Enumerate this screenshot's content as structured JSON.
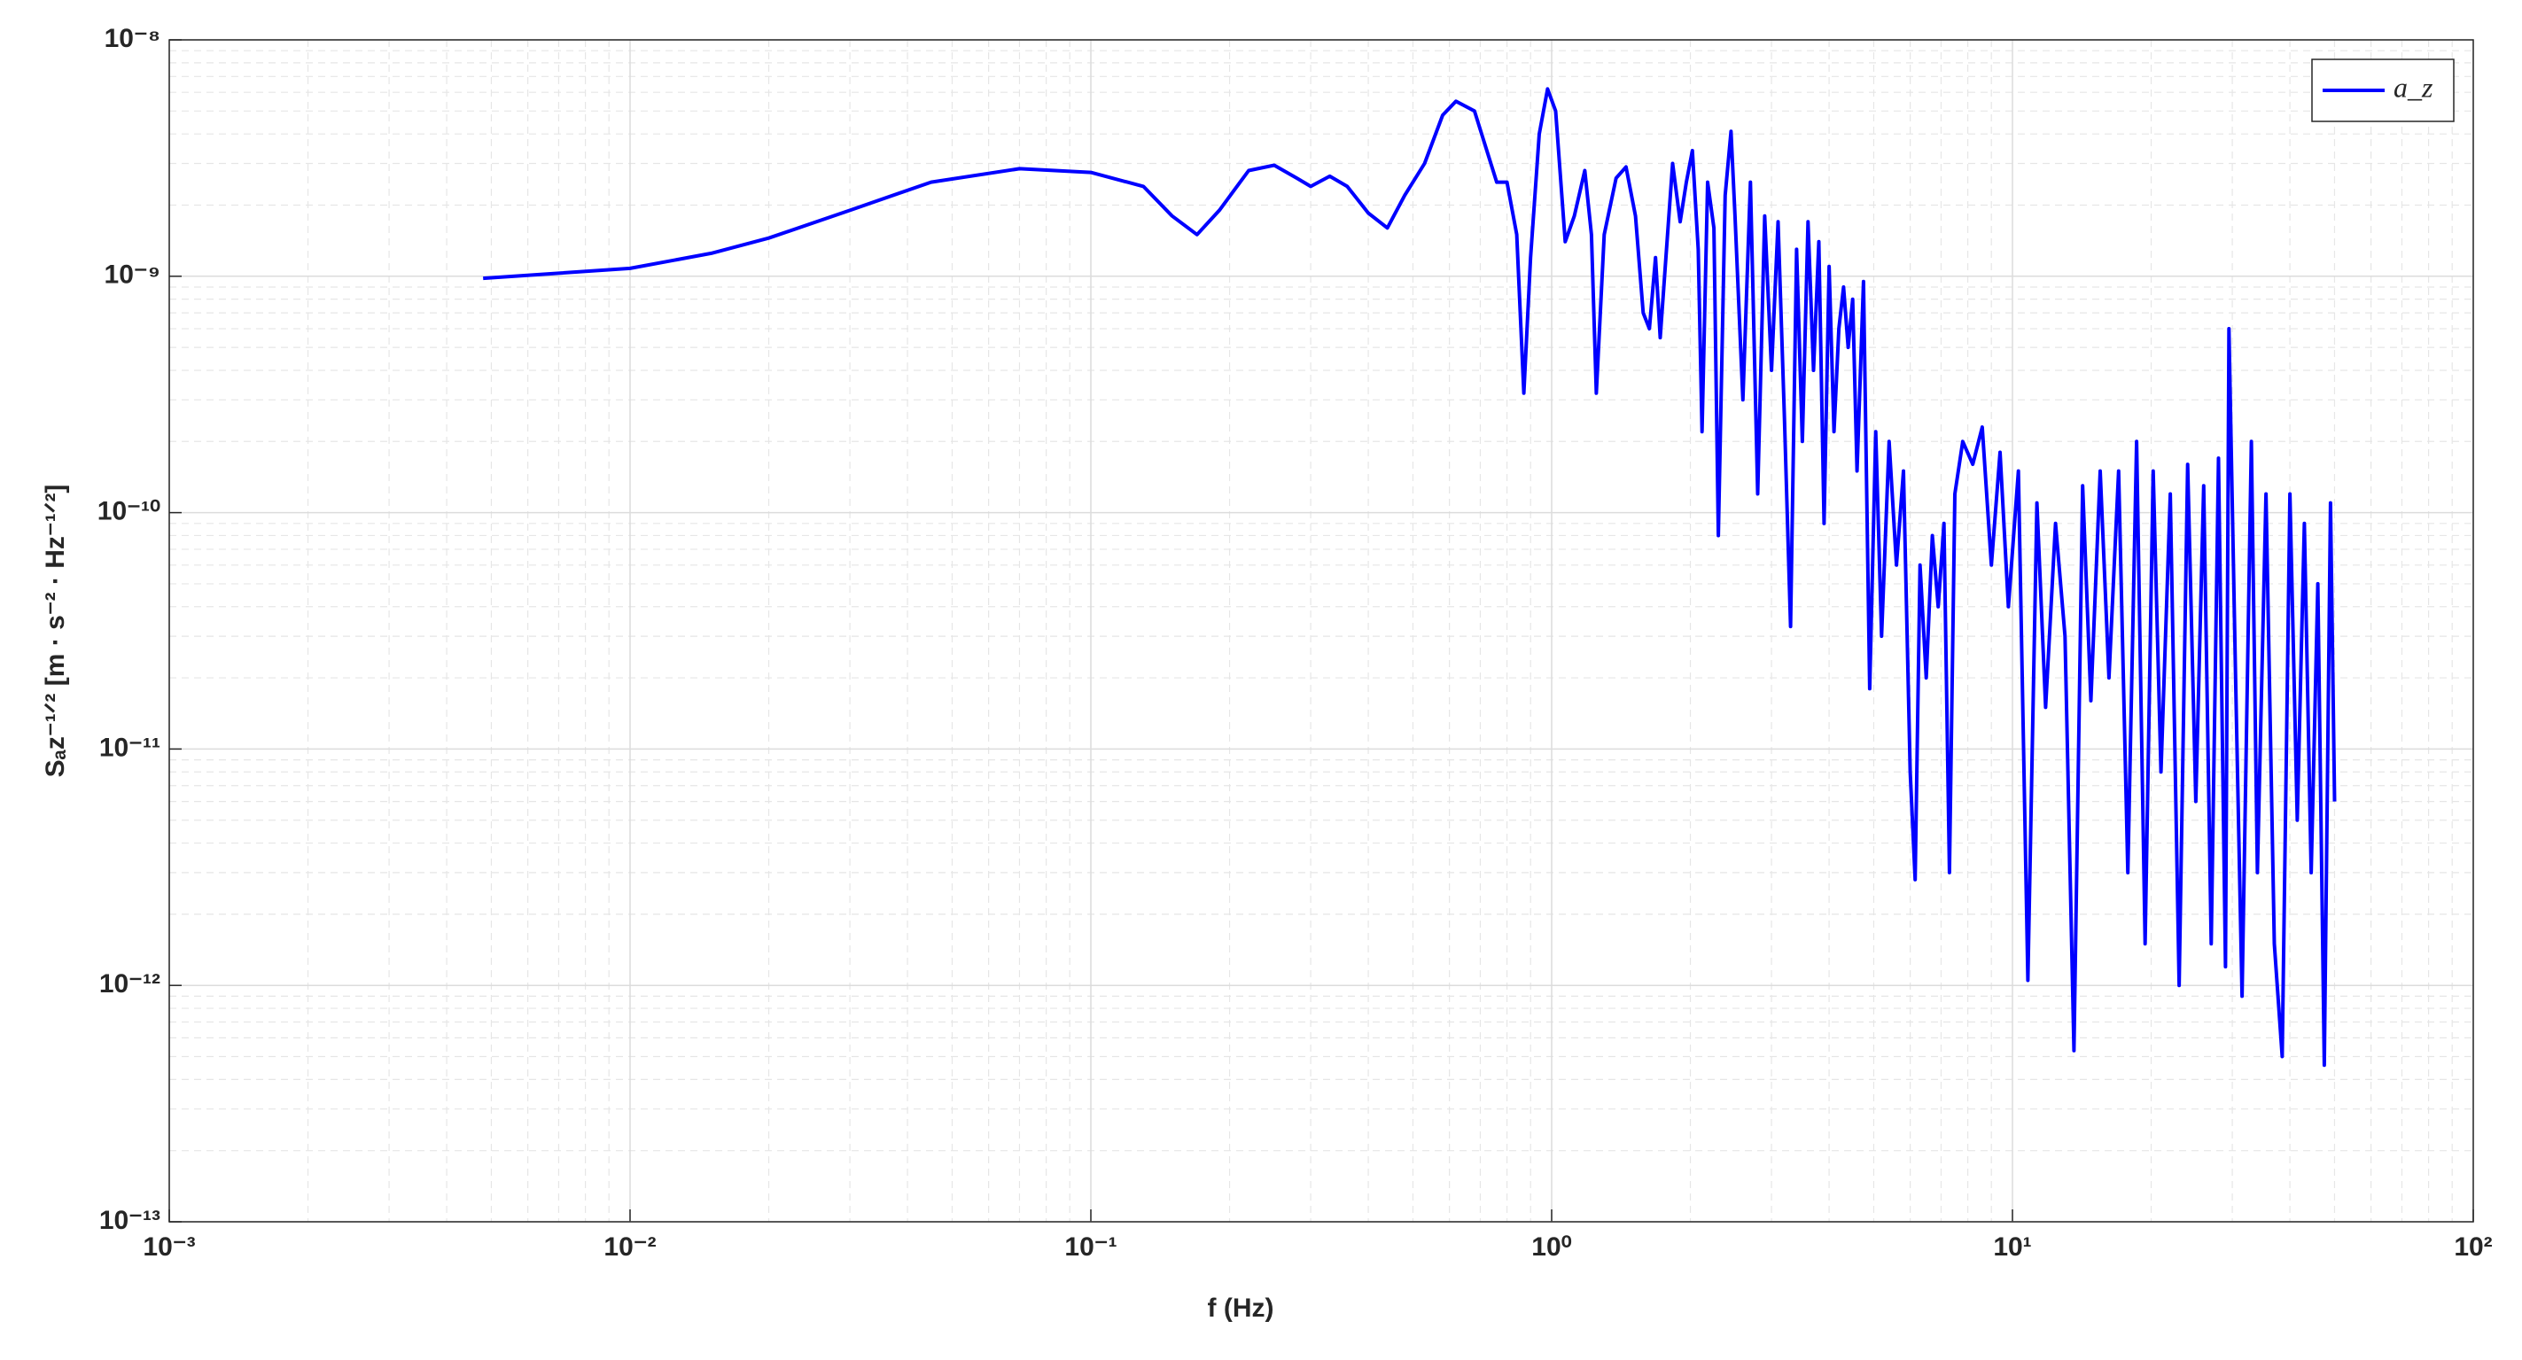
{
  "chart_data": {
    "type": "line",
    "xlabel": "f (Hz)",
    "ylabel": "Sₐz⁻¹ᐟ² [m · s⁻² · Hz⁻¹ᐟ²]",
    "log_x": true,
    "log_y": true,
    "grid": true,
    "minor_grid": true,
    "legend": "upper right",
    "xlim": [
      0.001,
      100
    ],
    "xticks": [
      {
        "value": 0.001,
        "label": "10⁻³"
      },
      {
        "value": 0.01,
        "label": "10⁻²"
      },
      {
        "value": 0.1,
        "label": "10⁻¹"
      },
      {
        "value": 1,
        "label": "10⁰"
      },
      {
        "value": 10,
        "label": "10¹"
      },
      {
        "value": 100,
        "label": "10²"
      }
    ],
    "ylim": [
      1e-13,
      1e-08
    ],
    "yticks": [
      {
        "value": 1e-13,
        "label": "10⁻¹³"
      },
      {
        "value": 1e-12,
        "label": "10⁻¹²"
      },
      {
        "value": 1e-11,
        "label": "10⁻¹¹"
      },
      {
        "value": 1e-10,
        "label": "10⁻¹⁰"
      },
      {
        "value": 1e-09,
        "label": "10⁻⁹"
      },
      {
        "value": 1e-08,
        "label": "10⁻⁸"
      }
    ],
    "x": [
      0.0048,
      0.0065,
      0.01,
      0.015,
      0.02,
      0.03,
      0.045,
      0.07,
      0.1,
      0.13,
      0.15,
      0.17,
      0.19,
      0.22,
      0.25,
      0.28,
      0.3,
      0.33,
      0.36,
      0.4,
      0.44,
      0.48,
      0.53,
      0.58,
      0.62,
      0.68,
      0.72,
      0.76,
      0.8,
      0.84,
      0.87,
      0.9,
      0.94,
      0.98,
      1.02,
      1.07,
      1.12,
      1.18,
      1.22,
      1.25,
      1.3,
      1.38,
      1.45,
      1.52,
      1.58,
      1.63,
      1.68,
      1.72,
      1.78,
      1.83,
      1.9,
      1.96,
      2.02,
      2.08,
      2.12,
      2.18,
      2.25,
      2.3,
      2.38,
      2.45,
      2.5,
      2.6,
      2.7,
      2.8,
      2.9,
      3.0,
      3.1,
      3.2,
      3.3,
      3.4,
      3.5,
      3.6,
      3.7,
      3.8,
      3.9,
      4.0,
      4.1,
      4.2,
      4.3,
      4.4,
      4.5,
      4.6,
      4.75,
      4.9,
      5.05,
      5.2,
      5.4,
      5.6,
      5.8,
      6.0,
      6.15,
      6.3,
      6.5,
      6.7,
      6.9,
      7.1,
      7.3,
      7.5,
      7.8,
      8.2,
      8.6,
      9.0,
      9.4,
      9.8,
      10.3,
      10.8,
      11.3,
      11.8,
      12.4,
      13,
      13.6,
      14.2,
      14.8,
      15.5,
      16.2,
      17,
      17.8,
      18.6,
      19.4,
      20.2,
      21,
      22,
      23,
      24,
      25,
      26,
      27,
      28,
      29,
      29.5,
      30.5,
      31.5,
      33,
      34,
      35.5,
      37,
      38.5,
      40,
      41.5,
      43,
      44.5,
      46,
      47.5,
      49,
      50
    ],
    "series": [
      {
        "name": "a_z",
        "color": "#0000ff",
        "values": [
          9.8e-10,
          1.02e-09,
          1.08e-09,
          1.25e-09,
          1.45e-09,
          1.9e-09,
          2.5e-09,
          2.85e-09,
          2.75e-09,
          2.4e-09,
          1.8e-09,
          1.5e-09,
          1.9e-09,
          2.8e-09,
          2.95e-09,
          2.6e-09,
          2.4e-09,
          2.65e-09,
          2.4e-09,
          1.85e-09,
          1.6e-09,
          2.2e-09,
          3e-09,
          4.8e-09,
          5.5e-09,
          5e-09,
          3.5e-09,
          2.5e-09,
          2.5e-09,
          1.5e-09,
          3.2e-10,
          1.2e-09,
          4e-09,
          6.2e-09,
          5e-09,
          1.4e-09,
          1.8e-09,
          2.8e-09,
          1.5e-09,
          3.2e-10,
          1.5e-09,
          2.6e-09,
          2.9e-09,
          1.8e-09,
          7e-10,
          6e-10,
          1.2e-09,
          5.5e-10,
          1.4e-09,
          3e-09,
          1.7e-09,
          2.5e-09,
          3.4e-09,
          1.3e-09,
          2.2e-10,
          2.5e-09,
          1.6e-09,
          8e-11,
          2.2e-09,
          4.1e-09,
          1.8e-09,
          3e-10,
          2.5e-09,
          1.2e-10,
          1.8e-09,
          4e-10,
          1.7e-09,
          2.5e-10,
          3.3e-11,
          1.3e-09,
          2e-10,
          1.7e-09,
          4e-10,
          1.4e-09,
          9e-11,
          1.1e-09,
          2.2e-10,
          6e-10,
          9e-10,
          5e-10,
          8e-10,
          1.5e-10,
          9.5e-10,
          1.8e-11,
          2.2e-10,
          3e-11,
          2e-10,
          6e-11,
          1.5e-10,
          8e-12,
          2.8e-12,
          6e-11,
          2e-11,
          8e-11,
          4e-11,
          9e-11,
          3e-12,
          1.2e-10,
          2e-10,
          1.6e-10,
          2.3e-10,
          6e-11,
          1.8e-10,
          4e-11,
          1.5e-10,
          1.05e-12,
          1.1e-10,
          1.5e-11,
          9e-11,
          3e-11,
          5.3e-13,
          1.3e-10,
          1.6e-11,
          1.5e-10,
          2e-11,
          1.5e-10,
          3e-12,
          2e-10,
          1.5e-12,
          1.5e-10,
          8e-12,
          1.2e-10,
          1e-12,
          1.6e-10,
          6e-12,
          1.3e-10,
          1.5e-12,
          1.7e-10,
          1.2e-12,
          6e-10,
          2e-11,
          9e-13,
          2e-10,
          3e-12,
          1.2e-10,
          1.5e-12,
          5e-13,
          1.2e-10,
          5e-12,
          9e-11,
          3e-12,
          5e-11,
          4.6e-13,
          1.1e-10,
          6e-12
        ]
      }
    ]
  }
}
